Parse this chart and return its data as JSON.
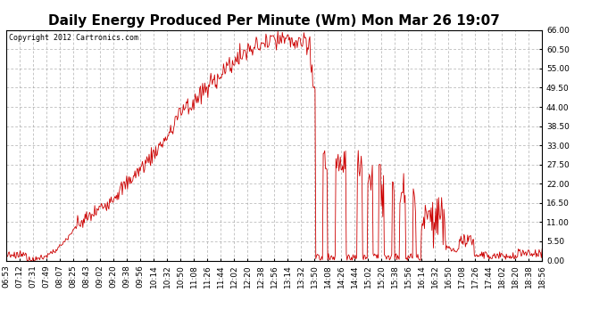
{
  "title": "Daily Energy Produced Per Minute (Wm) Mon Mar 26 19:07",
  "copyright_text": "Copyright 2012 Cartronics.com",
  "line_color": "#cc0000",
  "background_color": "#ffffff",
  "plot_bg_color": "#ffffff",
  "grid_color": "#999999",
  "y_ticks": [
    0.0,
    5.5,
    11.0,
    16.5,
    22.0,
    27.5,
    33.0,
    38.5,
    44.0,
    49.5,
    55.0,
    60.5,
    66.0
  ],
  "ylim": [
    0.0,
    66.0
  ],
  "x_tick_labels": [
    "06:53",
    "07:12",
    "07:31",
    "07:49",
    "08:07",
    "08:25",
    "08:43",
    "09:02",
    "09:20",
    "09:38",
    "09:56",
    "10:14",
    "10:32",
    "10:50",
    "11:08",
    "11:26",
    "11:44",
    "12:02",
    "12:20",
    "12:38",
    "12:56",
    "13:14",
    "13:32",
    "13:50",
    "14:08",
    "14:26",
    "14:44",
    "15:02",
    "15:20",
    "15:38",
    "15:56",
    "16:14",
    "16:32",
    "16:50",
    "17:08",
    "17:26",
    "17:44",
    "18:02",
    "18:20",
    "18:38",
    "18:56"
  ],
  "title_fontsize": 11,
  "tick_fontsize": 6.5
}
